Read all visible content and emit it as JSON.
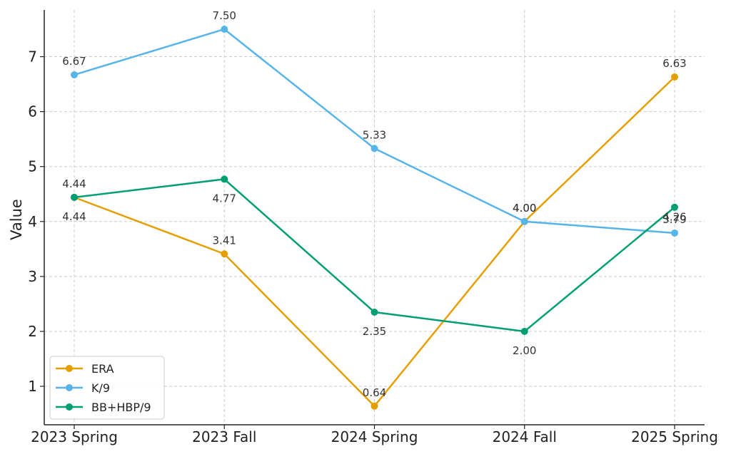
{
  "chart_data": {
    "type": "line",
    "categories": [
      "2023 Spring",
      "2023 Fall",
      "2024 Spring",
      "2024 Fall",
      "2025 Spring"
    ],
    "ylabel": "Value",
    "ylim": [
      0.3,
      7.85
    ],
    "yticks": [
      "1",
      "2",
      "3",
      "4",
      "5",
      "6",
      "7"
    ],
    "grid": true,
    "legend_position": "lower-left",
    "series": [
      {
        "name": "ERA",
        "color": "#E69F00",
        "values": [
          4.44,
          3.41,
          0.64,
          4.0,
          6.63
        ],
        "labels": [
          "4.44",
          "3.41",
          "0.64",
          "4.00",
          "6.63"
        ]
      },
      {
        "name": "K/9",
        "color": "#56B4E9",
        "values": [
          6.67,
          7.5,
          5.33,
          4.0,
          3.79
        ],
        "labels": [
          "6.67",
          "7.50",
          "5.33",
          "4.00",
          "3.79"
        ]
      },
      {
        "name": "BB+HBP/9",
        "color": "#009E73",
        "values": [
          4.44,
          4.77,
          2.35,
          2.0,
          4.26
        ],
        "labels": [
          "4.44",
          "4.77",
          "2.35",
          "2.00",
          "4.26"
        ]
      }
    ]
  }
}
